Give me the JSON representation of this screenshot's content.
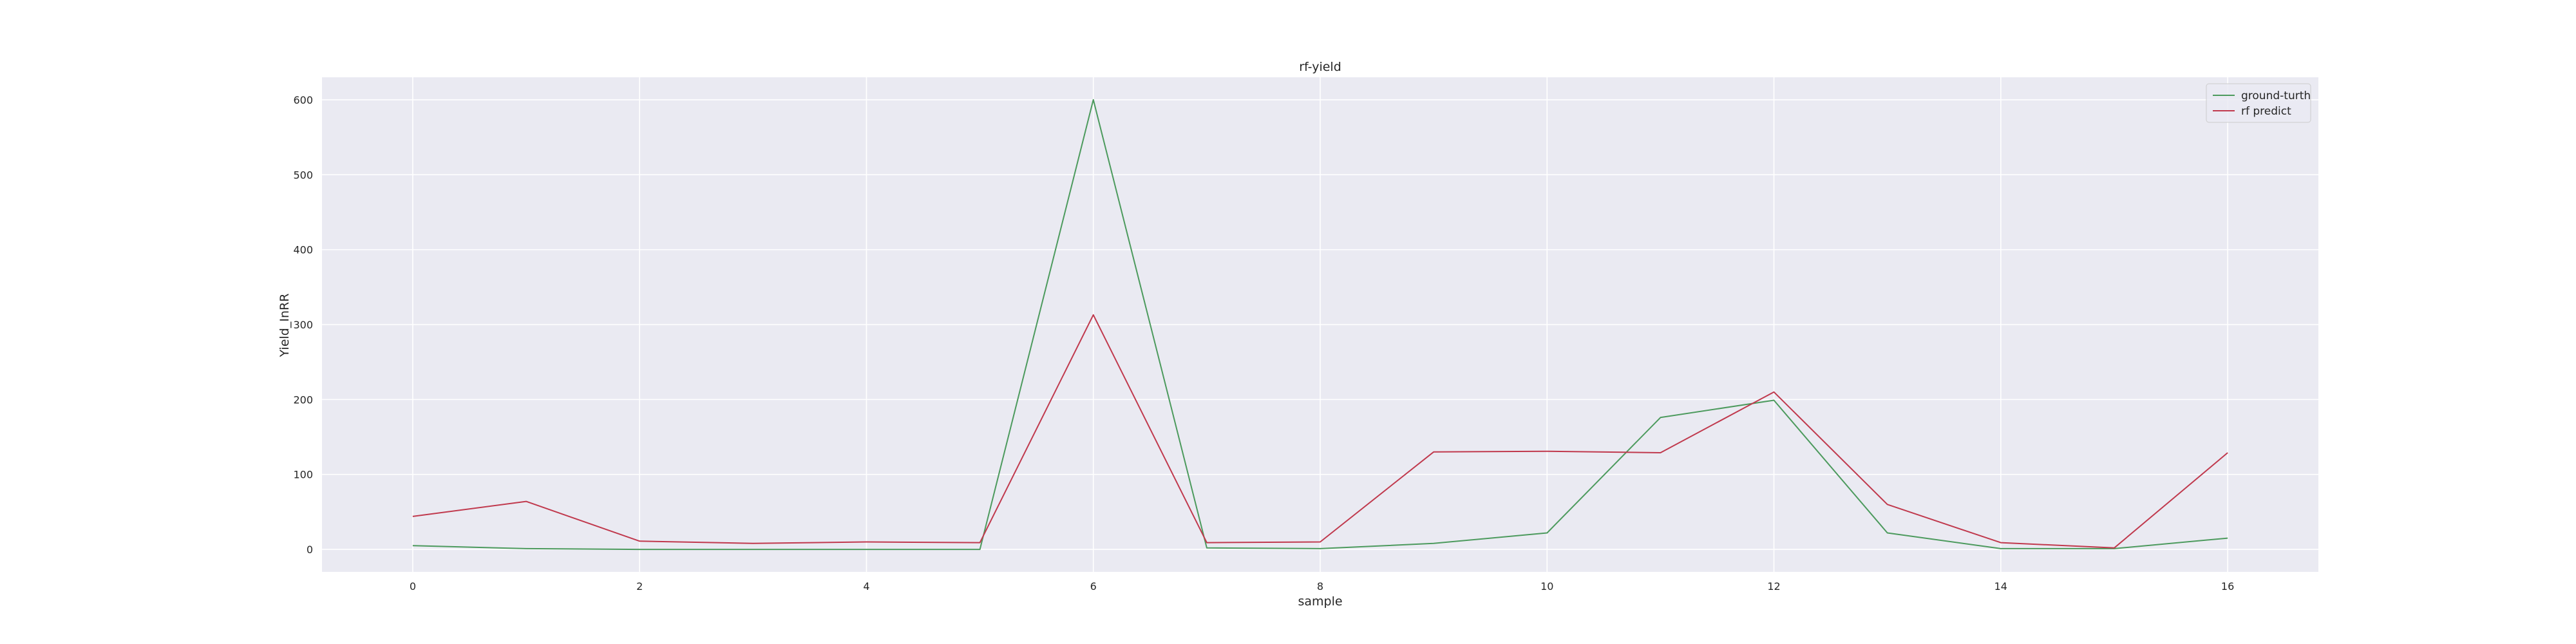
{
  "chart_data": {
    "type": "line",
    "title": "rf-yield",
    "xlabel": "sample",
    "ylabel": "Yield_InRR",
    "x": [
      0,
      1,
      2,
      3,
      4,
      5,
      6,
      7,
      8,
      9,
      10,
      11,
      12,
      13,
      14,
      15,
      16
    ],
    "xticks": [
      0,
      2,
      4,
      6,
      8,
      10,
      12,
      14,
      16
    ],
    "yticks": [
      0,
      100,
      200,
      300,
      400,
      500,
      600
    ],
    "xlim": [
      -0.8,
      16.8
    ],
    "ylim": [
      -30,
      630
    ],
    "grid": true,
    "legend_position": "top-right",
    "series": [
      {
        "name": "ground-turth",
        "color": "#4c9a5d",
        "values": [
          5,
          1,
          0,
          0,
          0,
          0,
          600,
          2,
          1,
          8,
          22,
          176,
          199,
          22,
          1,
          1,
          15
        ]
      },
      {
        "name": "rf predict",
        "color": "#c0394d",
        "values": [
          44,
          64,
          11,
          8,
          10,
          9,
          313,
          9,
          10,
          130,
          131,
          129,
          210,
          60,
          9,
          2,
          129
        ]
      }
    ]
  }
}
